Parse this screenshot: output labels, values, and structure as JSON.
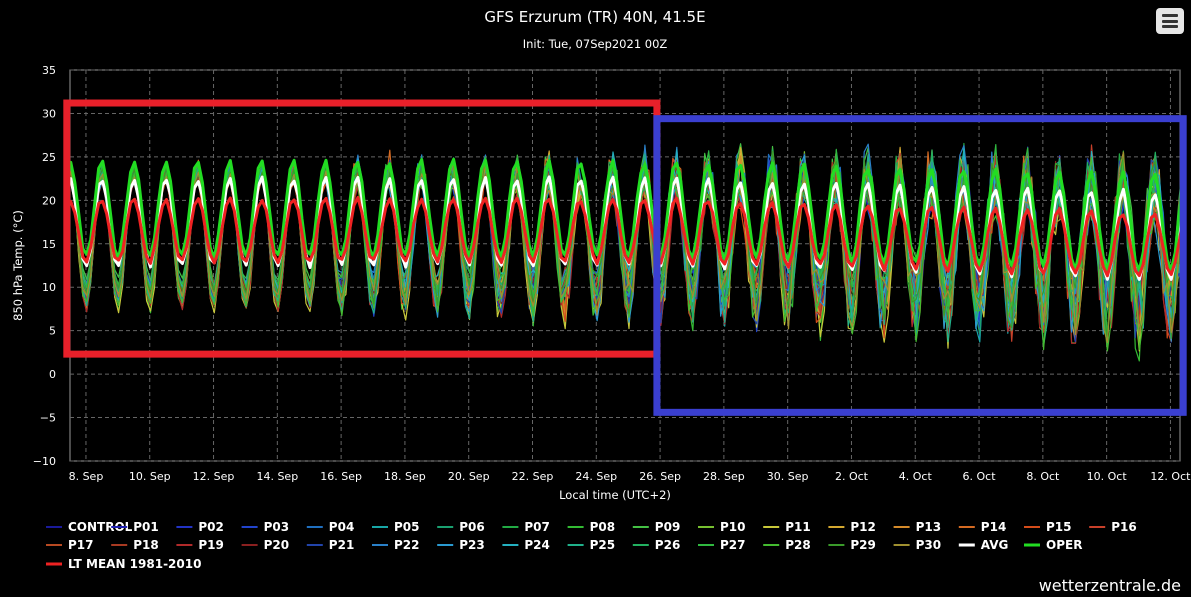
{
  "header": {
    "title": "GFS Erzurum (TR) 40N, 41.5E",
    "subtitle": "Init: Tue, 07Sep2021 00Z"
  },
  "watermark": "wetterzentrale.de",
  "menu": {
    "icon": "hamburger-menu-icon"
  },
  "chart_data": {
    "type": "line",
    "title": "GFS Erzurum (TR) 40N, 41.5E",
    "subtitle": "Init: Tue, 07Sep2021 00Z",
    "xlabel": "Local time (UTC+2)",
    "ylabel": "850 hPa Temp. (°C)",
    "ylim": [
      -10,
      35
    ],
    "yticks": [
      -10,
      -5,
      0,
      5,
      10,
      15,
      20,
      25,
      30,
      35
    ],
    "xlim": [
      7.5,
      42.3
    ],
    "xtick_positions": [
      8,
      10,
      12,
      14,
      16,
      18,
      20,
      22,
      24,
      26,
      28,
      30,
      32,
      34,
      36,
      38,
      40,
      42
    ],
    "xtick_labels": [
      "8. Sep",
      "10. Sep",
      "12. Sep",
      "14. Sep",
      "16. Sep",
      "18. Sep",
      "20. Sep",
      "22. Sep",
      "24. Sep",
      "26. Sep",
      "28. Sep",
      "30. Sep",
      "2. Oct",
      "4. Oct",
      "6. Oct",
      "8. Oct",
      "10. Oct",
      "12. Oct"
    ],
    "grid": true,
    "legend_position": "bottom",
    "x_day_start": 7.4,
    "x_day_end": 42.5,
    "series": [
      {
        "name": "CONTROL",
        "color": "#1a1a9a",
        "mean": 16.5,
        "amp": 6.0
      },
      {
        "name": "P01",
        "color": "#1f1fb0",
        "mean": 16.0,
        "amp": 6.2
      },
      {
        "name": "P02",
        "color": "#2233c4",
        "mean": 16.8,
        "amp": 5.8
      },
      {
        "name": "P03",
        "color": "#2244cc",
        "mean": 15.5,
        "amp": 6.4
      },
      {
        "name": "P04",
        "color": "#1f6fbf",
        "mean": 17.0,
        "amp": 6.0
      },
      {
        "name": "P05",
        "color": "#18a6a6",
        "mean": 15.8,
        "amp": 6.6
      },
      {
        "name": "P06",
        "color": "#1aa070",
        "mean": 16.2,
        "amp": 6.0
      },
      {
        "name": "P07",
        "color": "#22aa44",
        "mean": 16.6,
        "amp": 6.3
      },
      {
        "name": "P08",
        "color": "#33bb33",
        "mean": 15.2,
        "amp": 6.8
      },
      {
        "name": "P09",
        "color": "#44c044",
        "mean": 17.4,
        "amp": 5.9
      },
      {
        "name": "P10",
        "color": "#77c030",
        "mean": 16.0,
        "amp": 6.1
      },
      {
        "name": "P11",
        "color": "#c8c83a",
        "mean": 15.0,
        "amp": 6.9
      },
      {
        "name": "P12",
        "color": "#d4a830",
        "mean": 16.4,
        "amp": 6.2
      },
      {
        "name": "P13",
        "color": "#d48a2a",
        "mean": 15.6,
        "amp": 6.0
      },
      {
        "name": "P14",
        "color": "#d46a22",
        "mean": 16.9,
        "amp": 6.4
      },
      {
        "name": "P15",
        "color": "#d44c1a",
        "mean": 15.3,
        "amp": 6.1
      },
      {
        "name": "P16",
        "color": "#c8402a",
        "mean": 16.1,
        "amp": 6.5
      },
      {
        "name": "P17",
        "color": "#b84a22",
        "mean": 15.7,
        "amp": 6.2
      },
      {
        "name": "P18",
        "color": "#a83a22",
        "mean": 16.7,
        "amp": 5.7
      },
      {
        "name": "P19",
        "color": "#b02a2a",
        "mean": 15.1,
        "amp": 6.6
      },
      {
        "name": "P20",
        "color": "#8a2020",
        "mean": 16.3,
        "amp": 6.0
      },
      {
        "name": "P21",
        "color": "#2244aa",
        "mean": 15.9,
        "amp": 6.4
      },
      {
        "name": "P22",
        "color": "#2a80c8",
        "mean": 17.2,
        "amp": 6.1
      },
      {
        "name": "P23",
        "color": "#2a9ad0",
        "mean": 15.4,
        "amp": 6.3
      },
      {
        "name": "P24",
        "color": "#24b0c0",
        "mean": 16.6,
        "amp": 5.9
      },
      {
        "name": "P25",
        "color": "#20b08a",
        "mean": 15.8,
        "amp": 6.7
      },
      {
        "name": "P26",
        "color": "#22b060",
        "mean": 16.2,
        "amp": 6.2
      },
      {
        "name": "P27",
        "color": "#30b840",
        "mean": 17.0,
        "amp": 6.0
      },
      {
        "name": "P28",
        "color": "#44bb30",
        "mean": 15.5,
        "amp": 6.5
      },
      {
        "name": "P29",
        "color": "#3a9a2a",
        "mean": 16.4,
        "amp": 6.1
      },
      {
        "name": "P30",
        "color": "#a09030",
        "mean": 15.9,
        "amp": 6.3
      },
      {
        "name": "AVG",
        "color": "#ffffff",
        "mean": 17.5,
        "amp": 5.0
      },
      {
        "name": "OPER",
        "color": "#22dd22",
        "mean": 19.0,
        "amp": 5.5
      },
      {
        "name": "LT MEAN 1981-2010",
        "color": "#ee2222",
        "mean": 16.5,
        "amp": 3.6
      }
    ],
    "annotations": [
      {
        "shape": "rectangle",
        "color": "#e8202a",
        "x_range": [
          7.4,
          25.9
        ],
        "y_range": [
          2.3,
          31.2
        ]
      },
      {
        "shape": "rectangle",
        "color": "#3a3fd0",
        "x_range": [
          25.9,
          42.4
        ],
        "y_range": [
          -4.4,
          29.4
        ]
      }
    ]
  }
}
